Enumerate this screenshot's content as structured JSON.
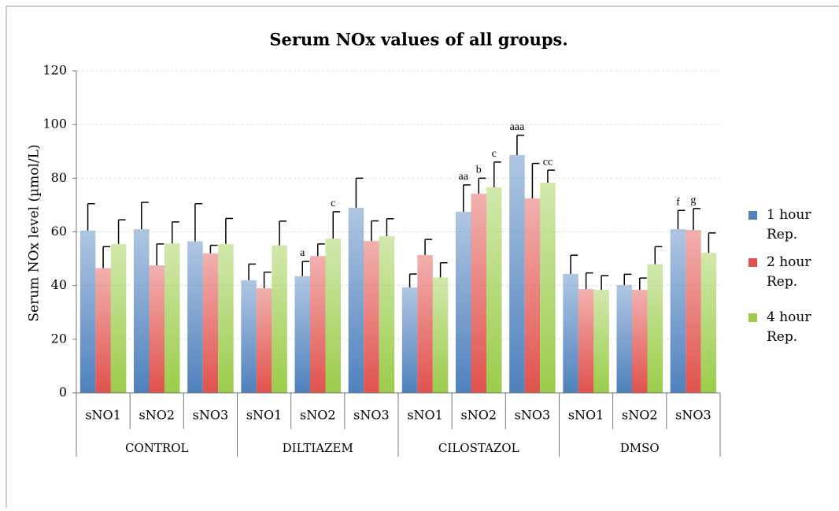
{
  "chart_data": {
    "type": "bar",
    "title": "Serum NOx values of all groups.",
    "y_label": "Serum NOx level (µmol/L)",
    "groups": [
      "CONTROL",
      "DILTIAZEM",
      "CILOSTAZOL",
      "DMSO"
    ],
    "categories": [
      "sNO1",
      "sNO2",
      "sNO3",
      "sNO1",
      "sNO2",
      "sNO3",
      "sNO1",
      "sNO2",
      "sNO3",
      "sNO1",
      "sNO2",
      "sNO3"
    ],
    "series": [
      {
        "name": "1 hour Rep.",
        "color": "#4f81bd",
        "values": [
          60.5,
          61,
          56.5,
          42,
          43.5,
          69,
          39.3,
          67.5,
          88.6,
          44.3,
          40.2,
          61
        ],
        "errors": [
          10,
          10,
          14,
          6,
          5.5,
          11,
          5,
          10,
          7.4,
          7,
          4,
          7
        ],
        "annotations": [
          null,
          null,
          null,
          null,
          "a",
          null,
          null,
          "aa",
          "aaa",
          null,
          null,
          "f"
        ]
      },
      {
        "name": "2 hour Rep.",
        "color": "#e0524d",
        "values": [
          46.5,
          47.5,
          52,
          39,
          51,
          56.6,
          51.4,
          74.2,
          72.5,
          38.7,
          38.4,
          60.7
        ],
        "errors": [
          8,
          8,
          3,
          6,
          4.5,
          7.5,
          5.8,
          5.8,
          13,
          6,
          4.4,
          8
        ],
        "annotations": [
          null,
          null,
          null,
          null,
          null,
          null,
          null,
          "b",
          null,
          null,
          null,
          "g"
        ]
      },
      {
        "name": "4 hour Rep.",
        "color": "#9bcc4a",
        "values": [
          55.5,
          55.7,
          55.5,
          55,
          57.5,
          58.4,
          43,
          76.6,
          78.3,
          38.4,
          48,
          52.2
        ],
        "errors": [
          9,
          8,
          9.5,
          9,
          10,
          6.5,
          5.5,
          9.4,
          4.7,
          5.3,
          6.5,
          7.4
        ],
        "annotations": [
          null,
          null,
          null,
          null,
          "c",
          null,
          null,
          "c",
          "cc",
          null,
          null,
          null
        ]
      }
    ],
    "ylim": [
      0,
      120
    ],
    "yticks": [
      0,
      20,
      40,
      60,
      80,
      100,
      120
    ],
    "grid": true,
    "legend": "right"
  }
}
